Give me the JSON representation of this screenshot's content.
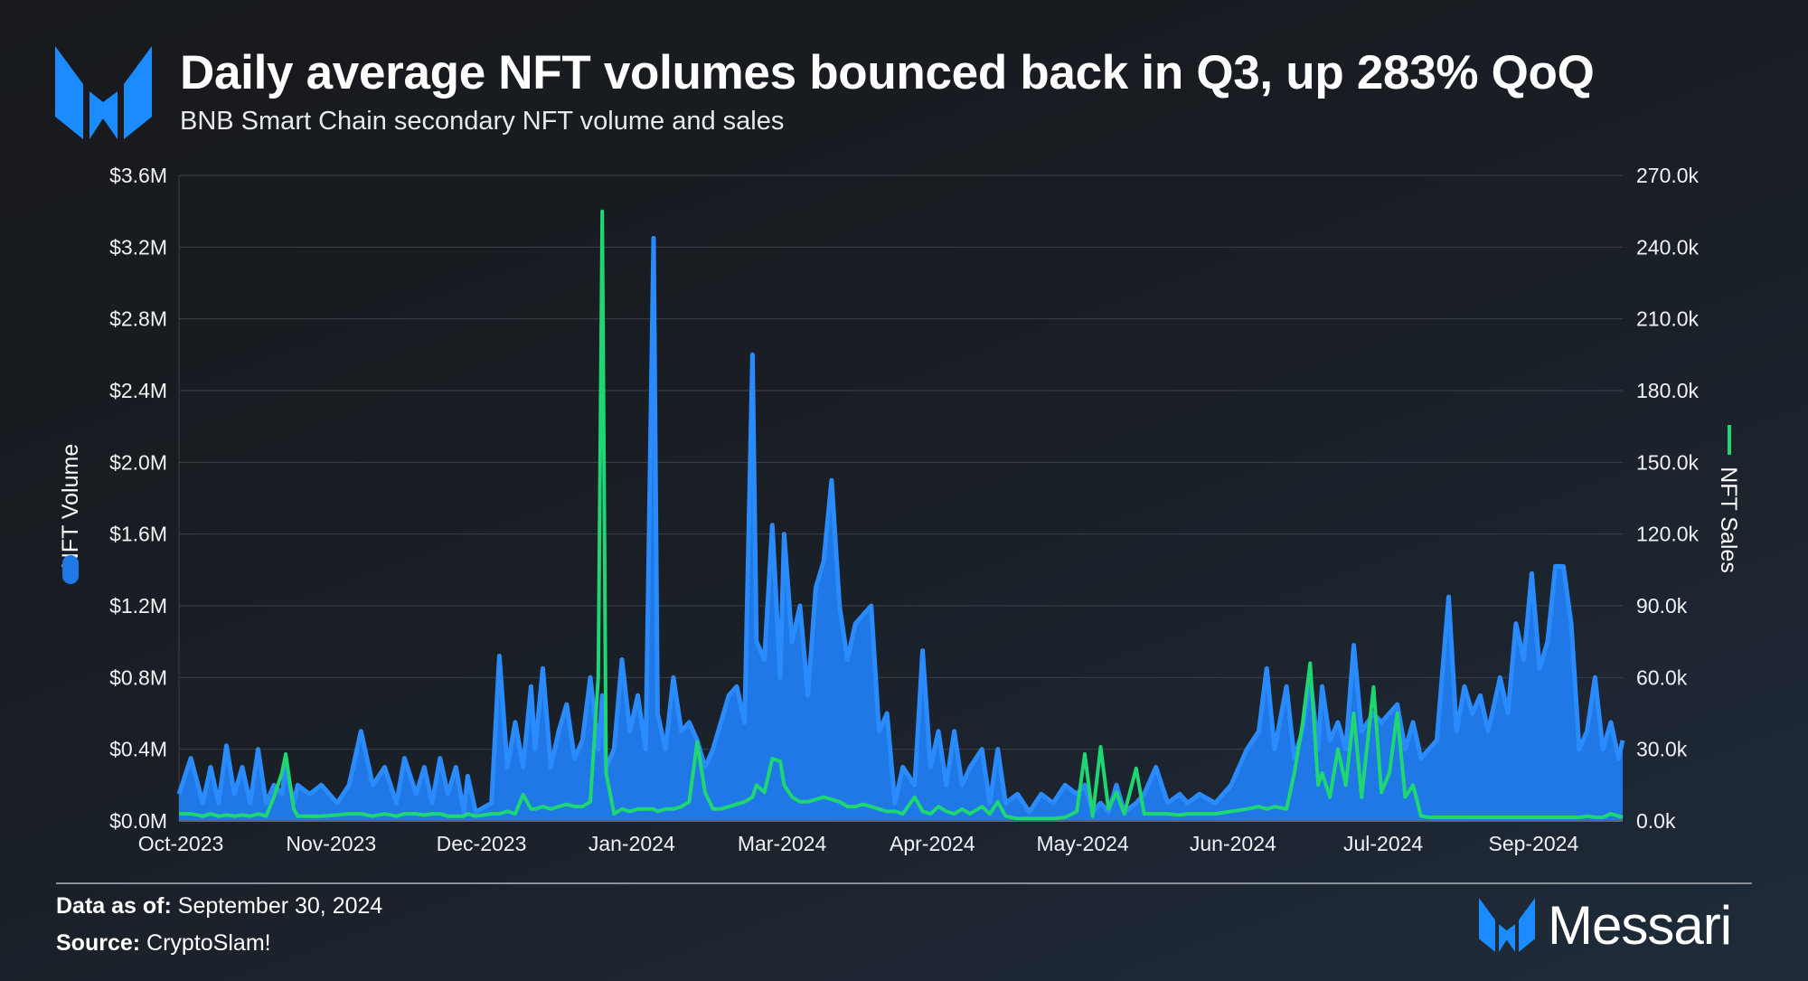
{
  "header": {
    "title": "Daily average NFT volumes bounced back in Q3, up 283% QoQ",
    "subtitle": "BNB Smart Chain secondary NFT volume and sales"
  },
  "footer": {
    "data_as_of_label": "Data as of:",
    "data_as_of_value": "September 30, 2024",
    "source_label": "Source:",
    "source_value": "CryptoSlam!",
    "brand": "Messari"
  },
  "colors": {
    "volume": "#1f78e6",
    "volume_line": "#2a8bff",
    "sales": "#1ed672",
    "brand_blue": "#1a8cff",
    "grid": "#3a4048"
  },
  "chart_data": {
    "type": "area",
    "title": "Daily average NFT volumes bounced back in Q3, up 283% QoQ",
    "subtitle": "BNB Smart Chain secondary NFT volume and sales",
    "xlabel": "",
    "ylabel_left": "NFT Volume",
    "ylabel_right": "NFT Sales",
    "ylim_left": [
      0,
      3.6
    ],
    "ylim_right": [
      0,
      270
    ],
    "left_ticks": [
      "$0.0M",
      "$0.4M",
      "$0.8M",
      "$1.2M",
      "$1.6M",
      "$2.0M",
      "$2.4M",
      "$2.8M",
      "$3.2M",
      "$3.6M"
    ],
    "right_ticks": [
      "0.0k",
      "30.0k",
      "60.0k",
      "90.0k",
      "120.0k",
      "150.0k",
      "180.0k",
      "210.0k",
      "240.0k",
      "270.0k"
    ],
    "x_ticks": [
      "Oct-2023",
      "Nov-2023",
      "Dec-2023",
      "Jan-2024",
      "Mar-2024",
      "Apr-2024",
      "May-2024",
      "Jun-2024",
      "Jul-2024",
      "Sep-2024"
    ],
    "x_range": [
      "2023-10-01",
      "2024-09-30"
    ],
    "grid": true,
    "legend": "axis titles",
    "dates": [
      "2023-10-01",
      "2023-10-04",
      "2023-10-07",
      "2023-10-09",
      "2023-10-11",
      "2023-10-13",
      "2023-10-15",
      "2023-10-17",
      "2023-10-19",
      "2023-10-21",
      "2023-10-23",
      "2023-10-25",
      "2023-10-27",
      "2023-10-28",
      "2023-10-30",
      "2023-10-31",
      "2023-11-03",
      "2023-11-06",
      "2023-11-10",
      "2023-11-13",
      "2023-11-16",
      "2023-11-19",
      "2023-11-22",
      "2023-11-25",
      "2023-11-27",
      "2023-11-30",
      "2023-12-02",
      "2023-12-04",
      "2023-12-06",
      "2023-12-08",
      "2023-12-10",
      "2023-12-12",
      "2023-12-13",
      "2023-12-15",
      "2023-12-19",
      "2023-12-21",
      "2023-12-23",
      "2023-12-25",
      "2023-12-27",
      "2023-12-29",
      "2023-12-30",
      "2024-01-01",
      "2024-01-03",
      "2024-01-05",
      "2024-01-07",
      "2024-01-09",
      "2024-01-11",
      "2024-01-13",
      "2024-01-15",
      "2024-01-16",
      "2024-01-17",
      "2024-01-19",
      "2024-01-21",
      "2024-01-23",
      "2024-01-25",
      "2024-01-27",
      "2024-01-29",
      "2024-01-30",
      "2024-02-01",
      "2024-02-03",
      "2024-02-05",
      "2024-02-07",
      "2024-02-09",
      "2024-02-11",
      "2024-02-13",
      "2024-02-15",
      "2024-02-17",
      "2024-02-19",
      "2024-02-21",
      "2024-02-23",
      "2024-02-24",
      "2024-02-26",
      "2024-02-28",
      "2024-03-01",
      "2024-03-02",
      "2024-03-04",
      "2024-03-06",
      "2024-03-08",
      "2024-03-10",
      "2024-03-12",
      "2024-03-14",
      "2024-03-16",
      "2024-03-18",
      "2024-03-20",
      "2024-03-22",
      "2024-03-24",
      "2024-03-26",
      "2024-03-28",
      "2024-03-30",
      "2024-04-01",
      "2024-04-04",
      "2024-04-06",
      "2024-04-08",
      "2024-04-10",
      "2024-04-12",
      "2024-04-14",
      "2024-04-16",
      "2024-04-18",
      "2024-04-21",
      "2024-04-23",
      "2024-04-25",
      "2024-04-27",
      "2024-04-30",
      "2024-05-03",
      "2024-05-06",
      "2024-05-09",
      "2024-05-12",
      "2024-05-15",
      "2024-05-17",
      "2024-05-19",
      "2024-05-21",
      "2024-05-23",
      "2024-05-25",
      "2024-05-27",
      "2024-05-30",
      "2024-06-01",
      "2024-06-04",
      "2024-06-07",
      "2024-06-10",
      "2024-06-12",
      "2024-06-15",
      "2024-06-19",
      "2024-06-23",
      "2024-06-27",
      "2024-06-30",
      "2024-07-02",
      "2024-07-04",
      "2024-07-07",
      "2024-07-09",
      "2024-07-11",
      "2024-07-13",
      "2024-07-15",
      "2024-07-16",
      "2024-07-18",
      "2024-07-20",
      "2024-07-22",
      "2024-07-24",
      "2024-07-26",
      "2024-07-29",
      "2024-07-31",
      "2024-08-02",
      "2024-08-04",
      "2024-08-06",
      "2024-08-08",
      "2024-08-10",
      "2024-08-12",
      "2024-08-14",
      "2024-08-17",
      "2024-08-19",
      "2024-08-21",
      "2024-08-23",
      "2024-08-25",
      "2024-08-27",
      "2024-08-30",
      "2024-09-01",
      "2024-09-03",
      "2024-09-05",
      "2024-09-07",
      "2024-09-09",
      "2024-09-11",
      "2024-09-13",
      "2024-09-15",
      "2024-09-17",
      "2024-09-19",
      "2024-09-21",
      "2024-09-23",
      "2024-09-25",
      "2024-09-27",
      "2024-09-29",
      "2024-09-30"
    ],
    "series": [
      {
        "name": "NFT Volume",
        "unit": "$M",
        "type": "area",
        "values": [
          0.15,
          0.35,
          0.1,
          0.3,
          0.1,
          0.42,
          0.15,
          0.3,
          0.1,
          0.4,
          0.1,
          0.2,
          0.15,
          0.3,
          0.1,
          0.2,
          0.15,
          0.2,
          0.1,
          0.2,
          0.5,
          0.2,
          0.3,
          0.1,
          0.35,
          0.15,
          0.3,
          0.1,
          0.35,
          0.15,
          0.3,
          0.05,
          0.25,
          0.05,
          0.1,
          0.92,
          0.3,
          0.55,
          0.3,
          0.75,
          0.4,
          0.85,
          0.3,
          0.5,
          0.65,
          0.35,
          0.45,
          0.8,
          0.4,
          0.7,
          0.3,
          0.4,
          0.9,
          0.5,
          0.7,
          0.4,
          3.25,
          0.6,
          0.4,
          0.8,
          0.5,
          0.55,
          0.45,
          0.3,
          0.4,
          0.55,
          0.7,
          0.75,
          0.55,
          2.6,
          1.0,
          0.9,
          1.65,
          0.8,
          1.6,
          1.0,
          1.2,
          0.7,
          1.3,
          1.45,
          1.9,
          1.2,
          0.9,
          1.1,
          1.15,
          1.2,
          0.5,
          0.6,
          0.1,
          0.3,
          0.2,
          0.95,
          0.3,
          0.5,
          0.2,
          0.5,
          0.2,
          0.3,
          0.4,
          0.1,
          0.4,
          0.1,
          0.15,
          0.05,
          0.15,
          0.1,
          0.2,
          0.15,
          0.2,
          0.05,
          0.1,
          0.05,
          0.2,
          0.05,
          0.1,
          0.15,
          0.3,
          0.1,
          0.15,
          0.1,
          0.15,
          0.1,
          0.2,
          0.4,
          0.5,
          0.85,
          0.4,
          0.75,
          0.35,
          0.5,
          0.8,
          0.4,
          0.75,
          0.45,
          0.55,
          0.4,
          0.98,
          0.5,
          0.6,
          0.55,
          0.6,
          0.65,
          0.4,
          0.55,
          0.35,
          0.4,
          0.45,
          1.25,
          0.5,
          0.75,
          0.6,
          0.7,
          0.5,
          0.8,
          0.6,
          1.1,
          0.9,
          1.38,
          0.85,
          1.0,
          1.42,
          1.42,
          1.1,
          0.4,
          0.5,
          0.8,
          0.4,
          0.55,
          0.35,
          0.45
        ]
      },
      {
        "name": "NFT Sales",
        "unit": "k",
        "type": "line",
        "values": [
          3,
          3,
          2,
          3,
          2,
          2.5,
          2,
          2.5,
          2,
          3,
          2,
          10,
          20,
          28,
          5,
          2,
          2,
          2,
          2.5,
          3,
          3,
          2,
          3,
          2,
          3,
          3,
          2.5,
          3,
          3,
          2,
          2,
          2,
          3,
          2,
          3,
          3,
          4,
          3,
          11,
          5,
          5,
          6,
          5,
          6,
          7,
          6,
          6,
          8,
          60,
          255,
          20,
          3,
          5,
          4,
          5,
          5,
          5,
          4,
          5,
          5,
          6,
          8,
          33,
          12,
          5,
          5,
          6,
          7,
          8,
          10,
          15,
          12,
          26,
          25,
          15,
          10,
          8,
          8,
          9,
          10,
          9,
          8,
          6,
          6,
          7,
          6,
          5,
          4,
          4,
          3,
          10,
          4,
          3,
          6,
          4,
          3,
          5,
          3,
          6,
          3,
          8,
          2,
          1,
          1,
          1,
          1,
          1.5,
          4,
          28,
          2,
          31,
          5,
          12,
          3,
          22,
          3,
          3,
          3,
          2.5,
          3,
          3,
          3,
          4,
          5,
          6,
          5,
          6,
          5,
          20,
          40,
          66,
          15,
          20,
          10,
          30,
          15,
          45,
          10,
          56,
          12,
          20,
          45,
          10,
          15,
          2,
          1.5,
          1.5,
          1.5,
          1.5,
          1.5,
          1.5,
          1.5,
          1.5,
          1.5,
          1.5,
          1.5,
          1.5,
          1.5,
          1.5,
          1.5,
          1.5,
          1.5,
          1.5,
          1.5,
          2,
          1.5,
          1.5,
          3,
          2,
          1.5
        ]
      }
    ]
  }
}
